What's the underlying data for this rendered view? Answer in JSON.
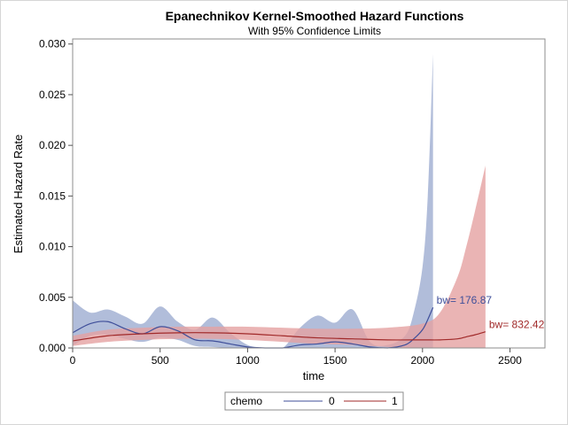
{
  "chart_data": {
    "type": "line",
    "title": "Epanechnikov Kernel-Smoothed Hazard Functions",
    "subtitle": "With 95% Confidence Limits",
    "xlabel": "time",
    "ylabel": "Estimated Hazard Rate",
    "xlim": [
      0,
      2700
    ],
    "ylim": [
      0,
      0.0305
    ],
    "x_ticks": [
      0,
      500,
      1000,
      1500,
      2000,
      2500
    ],
    "x_tick_labels": [
      "0",
      "500",
      "1000",
      "1500",
      "2000",
      "2500"
    ],
    "y_ticks": [
      0,
      0.005,
      0.01,
      0.015,
      0.02,
      0.025,
      0.03
    ],
    "y_tick_labels": [
      "0.000",
      "0.005",
      "0.010",
      "0.015",
      "0.020",
      "0.025",
      "0.030"
    ],
    "grid": false,
    "legend": {
      "title": "chemo",
      "position": "bottom-center"
    },
    "series": [
      {
        "name": "0",
        "color": "#3f4f9a",
        "band_color": "#a3b1d4",
        "annotation": "bw= 176.87",
        "x": [
          0,
          100,
          200,
          300,
          400,
          500,
          600,
          700,
          800,
          900,
          1000,
          1100,
          1200,
          1300,
          1400,
          1500,
          1600,
          1700,
          1800,
          1900,
          1950,
          2000,
          2030,
          2060
        ],
        "hazard": [
          0.0015,
          0.0024,
          0.0026,
          0.0019,
          0.0014,
          0.0021,
          0.0017,
          0.0008,
          0.0007,
          0.0004,
          0.0001,
          0.0,
          0.0,
          0.0003,
          0.0004,
          0.0006,
          0.0004,
          0.0001,
          0.0,
          0.0003,
          0.0009,
          0.0018,
          0.0028,
          0.004
        ],
        "lower": [
          0.0002,
          0.0012,
          0.0013,
          0.0009,
          0.0006,
          0.001,
          0.0008,
          0.0002,
          0.0001,
          0.0,
          0.0,
          0.0,
          0.0,
          0.0,
          0.0,
          0.0,
          0.0,
          0.0,
          0.0,
          0.0,
          0.0,
          0.0,
          0.0,
          0.0
        ],
        "upper": [
          0.0047,
          0.0035,
          0.0038,
          0.0031,
          0.0024,
          0.0041,
          0.0026,
          0.0018,
          0.003,
          0.0015,
          0.0003,
          0.0,
          0.0,
          0.002,
          0.0032,
          0.0025,
          0.0038,
          0.0006,
          0.0003,
          0.0012,
          0.0035,
          0.008,
          0.015,
          0.029
        ]
      },
      {
        "name": "1",
        "color": "#a12a2a",
        "band_color": "#e5a1a1",
        "annotation": "bw= 832.42",
        "x": [
          0,
          200,
          400,
          600,
          800,
          1000,
          1200,
          1400,
          1600,
          1800,
          2000,
          2100,
          2200,
          2250,
          2300,
          2360
        ],
        "hazard": [
          0.0007,
          0.0012,
          0.0014,
          0.0015,
          0.0015,
          0.0014,
          0.0012,
          0.001,
          0.0009,
          0.0008,
          0.0008,
          0.0008,
          0.0009,
          0.0011,
          0.0013,
          0.0016
        ],
        "lower": [
          0.0002,
          0.0006,
          0.0008,
          0.0009,
          0.0009,
          0.0008,
          0.0006,
          0.0004,
          0.0003,
          0.0001,
          0.0,
          0.0,
          0.0,
          0.0,
          0.0,
          0.0
        ],
        "upper": [
          0.0012,
          0.0018,
          0.002,
          0.0021,
          0.0021,
          0.0021,
          0.002,
          0.0019,
          0.0019,
          0.002,
          0.0024,
          0.0035,
          0.007,
          0.01,
          0.0135,
          0.018
        ]
      }
    ]
  }
}
